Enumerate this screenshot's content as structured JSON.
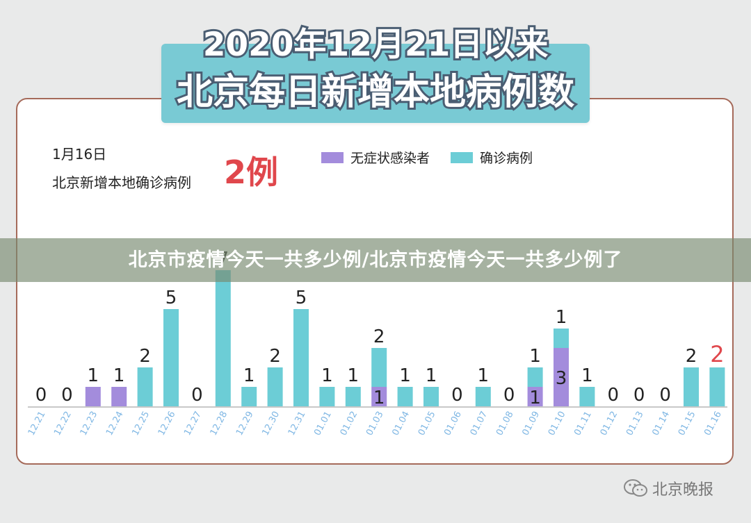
{
  "title": {
    "line1": "2020年12月21日以来",
    "line2": "北京每日新增本地病例数"
  },
  "info": {
    "date": "1月16日",
    "subtitle": "北京新增本地确诊病例",
    "highlight": "2例"
  },
  "banner": "北京市疫情今天一共多少例/北京市疫情今天一共多少例了",
  "watermark": "北京晚报",
  "colors": {
    "confirmed": "#6ccdd6",
    "asymptomatic": "#a38cdc",
    "highlight": "#e0474c",
    "axis_label": "#7fb7e4"
  },
  "chart_data": {
    "type": "bar",
    "stacked": true,
    "title": "北京每日新增本地病例数",
    "xlabel": "",
    "ylabel": "",
    "legend_position": "top-right",
    "grid": false,
    "categories": [
      "12.21",
      "12.22",
      "12.23",
      "12.24",
      "12.25",
      "12.26",
      "12.27",
      "12.28",
      "12.29",
      "12.30",
      "12.31",
      "01.01",
      "01.02",
      "01.03",
      "01.04",
      "01.05",
      "01.06",
      "01.07",
      "01.08",
      "01.09",
      "01.10",
      "01.11",
      "01.12",
      "01.13",
      "01.14",
      "01.15",
      "01.16"
    ],
    "series": [
      {
        "name": "无症状感染者",
        "color": "#a38cdc",
        "values": [
          0,
          0,
          1,
          1,
          0,
          0,
          0,
          0,
          0,
          0,
          0,
          0,
          0,
          1,
          0,
          0,
          0,
          0,
          0,
          1,
          3,
          0,
          0,
          0,
          0,
          0,
          0
        ]
      },
      {
        "name": "确诊病例",
        "color": "#6ccdd6",
        "values": [
          0,
          0,
          0,
          0,
          2,
          5,
          0,
          7,
          1,
          2,
          5,
          1,
          1,
          2,
          1,
          1,
          0,
          1,
          0,
          1,
          1,
          1,
          0,
          0,
          0,
          2,
          2
        ]
      }
    ],
    "zero_labels": [
      0,
      0,
      null,
      null,
      null,
      null,
      0,
      null,
      null,
      null,
      null,
      null,
      null,
      null,
      null,
      null,
      0,
      null,
      0,
      null,
      null,
      null,
      0,
      0,
      0,
      null,
      null
    ],
    "highlighted_category": "01.16"
  }
}
